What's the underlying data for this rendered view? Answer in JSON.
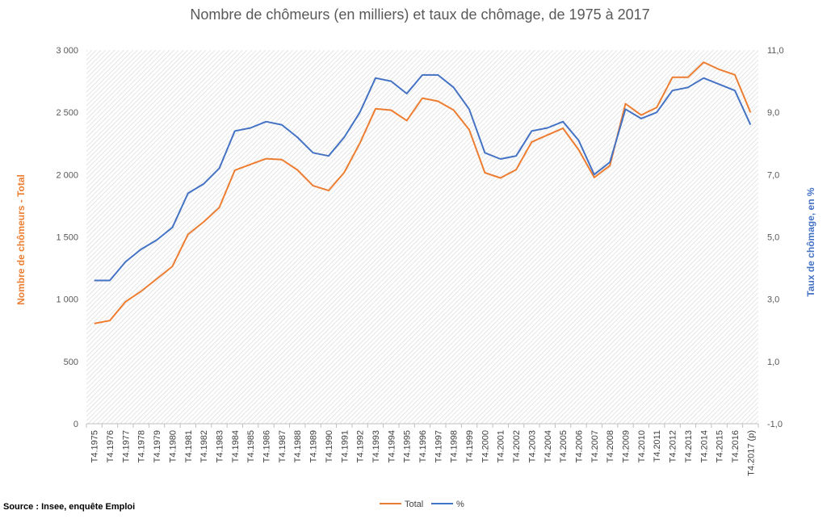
{
  "chart_data": {
    "type": "line",
    "title": "Nombre de chômeurs (en milliers) et taux de chômage, de 1975 à 2017",
    "ylabel": "Nombre de chômeurs - Total",
    "y2label": "Taux de chômage, en %",
    "xlabel": "",
    "categories": [
      "T4.1975",
      "T4.1976",
      "T4.1977",
      "T4.1978",
      "T4.1979",
      "T4.1980",
      "T4.1981",
      "T4.1982",
      "T4.1983",
      "T4.1984",
      "T4.1985",
      "T4.1986",
      "T4.1987",
      "T4.1988",
      "T4.1989",
      "T4.1990",
      "T4.1991",
      "T4.1992",
      "T4.1993",
      "T4.1994",
      "T4.1995",
      "T4.1996",
      "T4.1997",
      "T4.1998",
      "T4.1999",
      "T4.2000",
      "T4.2001",
      "T4.2002",
      "T4.2003",
      "T4.2004",
      "T4.2005",
      "T4.2006",
      "T4.2007",
      "T4.2008",
      "T4.2009",
      "T4.2010",
      "T4.2011",
      "T4.2012",
      "T4.2013",
      "T4.2014",
      "T4.2015",
      "T4.2016",
      "T4.2017 (p)"
    ],
    "series": [
      {
        "name": "Total",
        "axis": "left",
        "color": "#ED7D31",
        "values": [
          805,
          828,
          980,
          1063,
          1163,
          1263,
          1520,
          1620,
          1735,
          2035,
          2082,
          2128,
          2121,
          2038,
          1911,
          1872,
          2018,
          2252,
          2528,
          2517,
          2434,
          2614,
          2589,
          2518,
          2360,
          2015,
          1973,
          2040,
          2262,
          2318,
          2372,
          2200,
          1977,
          2072,
          2569,
          2478,
          2539,
          2781,
          2781,
          2902,
          2844,
          2801,
          2500
        ]
      },
      {
        "name": "%",
        "axis": "right",
        "color": "#4472C4",
        "values": [
          3.6,
          3.6,
          4.2,
          4.6,
          4.9,
          5.3,
          6.4,
          6.7,
          7.2,
          8.4,
          8.5,
          8.7,
          8.6,
          8.2,
          7.7,
          7.6,
          8.2,
          9.0,
          10.1,
          10.0,
          9.6,
          10.2,
          10.2,
          9.8,
          9.1,
          7.7,
          7.5,
          7.6,
          8.4,
          8.5,
          8.7,
          8.1,
          7.0,
          7.4,
          9.1,
          8.8,
          9.0,
          9.7,
          9.8,
          10.1,
          9.9,
          9.7,
          8.6
        ]
      }
    ],
    "ylim": [
      0,
      3000
    ],
    "y2lim": [
      -1,
      11
    ],
    "yticks": [
      "0",
      "500",
      "1 000",
      "1 500",
      "2 000",
      "2 500",
      "3 000"
    ],
    "y2ticks": [
      "-1,0",
      "1,0",
      "3,0",
      "5,0",
      "7,0",
      "9,0",
      "11,0"
    ],
    "grid": false,
    "plot_background": "diagonal hatch",
    "legend_position": "bottom"
  },
  "source_note": "Source : Insee, enquête Emploi",
  "legend": {
    "total_label": "Total",
    "pct_label": "%"
  }
}
